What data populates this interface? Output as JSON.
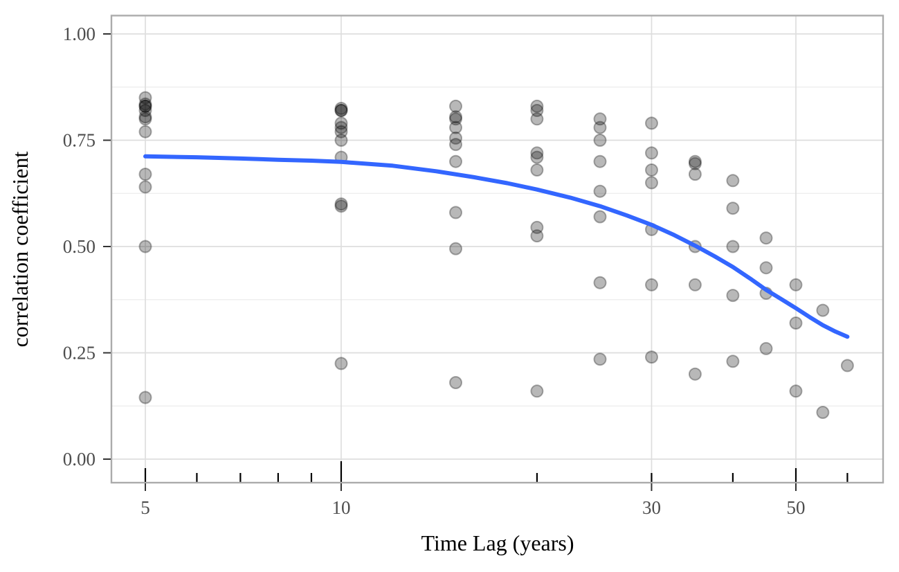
{
  "chart_data": {
    "type": "scatter",
    "title": "",
    "xlabel": "Time Lag (years)",
    "ylabel": "correlation coefficient",
    "x_scale": "log10",
    "x_tick_labels": [
      "5",
      "10",
      "30",
      "50"
    ],
    "x_tick_values": [
      5,
      10,
      30,
      50
    ],
    "y_tick_labels": [
      "0.00",
      "0.25",
      "0.50",
      "0.75",
      "1.00"
    ],
    "y_tick_values": [
      0,
      0.25,
      0.5,
      0.75,
      1.0
    ],
    "y_minor_gridlines": [
      0.125,
      0.375,
      0.625,
      0.875
    ],
    "xlim": [
      4.44,
      68
    ],
    "ylim": [
      -0.055,
      1.043
    ],
    "grid": "on",
    "legend": "none",
    "log_tick_marks": {
      "long": [
        10
      ],
      "medium": [
        5,
        50
      ],
      "short": [
        6,
        7,
        8,
        9,
        20,
        30,
        40,
        60
      ]
    },
    "points": [
      {
        "x": 5,
        "ys": [
          0.85,
          0.835,
          0.83,
          0.83,
          0.82,
          0.805,
          0.8,
          0.77,
          0.67,
          0.64,
          0.5,
          0.145
        ]
      },
      {
        "x": 10,
        "ys": [
          0.825,
          0.82,
          0.82,
          0.79,
          0.78,
          0.77,
          0.75,
          0.71,
          0.6,
          0.595,
          0.225
        ]
      },
      {
        "x": 15,
        "ys": [
          0.83,
          0.805,
          0.8,
          0.78,
          0.755,
          0.74,
          0.7,
          0.58,
          0.495,
          0.18
        ]
      },
      {
        "x": 20,
        "ys": [
          0.83,
          0.82,
          0.8,
          0.72,
          0.71,
          0.68,
          0.545,
          0.525,
          0.16
        ]
      },
      {
        "x": 25,
        "ys": [
          0.8,
          0.78,
          0.75,
          0.7,
          0.63,
          0.57,
          0.415,
          0.235
        ]
      },
      {
        "x": 30,
        "ys": [
          0.79,
          0.72,
          0.68,
          0.65,
          0.54,
          0.41,
          0.24
        ]
      },
      {
        "x": 35,
        "ys": [
          0.7,
          0.695,
          0.67,
          0.5,
          0.41,
          0.2
        ]
      },
      {
        "x": 40,
        "ys": [
          0.655,
          0.59,
          0.5,
          0.385,
          0.23
        ]
      },
      {
        "x": 45,
        "ys": [
          0.52,
          0.45,
          0.39,
          0.26
        ]
      },
      {
        "x": 50,
        "ys": [
          0.41,
          0.32,
          0.16
        ]
      },
      {
        "x": 55,
        "ys": [
          0.35,
          0.11
        ]
      },
      {
        "x": 60,
        "ys": [
          0.22
        ]
      }
    ],
    "smooth_line": {
      "name": "smooth-fit",
      "color": "#3366FF",
      "width": 6,
      "points": [
        [
          5,
          0.712
        ],
        [
          6,
          0.71
        ],
        [
          7,
          0.707
        ],
        [
          8,
          0.704
        ],
        [
          9,
          0.702
        ],
        [
          10,
          0.699
        ],
        [
          12,
          0.69
        ],
        [
          14,
          0.677
        ],
        [
          16,
          0.663
        ],
        [
          18,
          0.649
        ],
        [
          20,
          0.634
        ],
        [
          22.5,
          0.615
        ],
        [
          25,
          0.595
        ],
        [
          27.5,
          0.573
        ],
        [
          30,
          0.551
        ],
        [
          32.5,
          0.527
        ],
        [
          35,
          0.502
        ],
        [
          37.5,
          0.477
        ],
        [
          40,
          0.452
        ],
        [
          42.5,
          0.425
        ],
        [
          45,
          0.398
        ],
        [
          47.5,
          0.376
        ],
        [
          50,
          0.355
        ],
        [
          52.5,
          0.334
        ],
        [
          55,
          0.315
        ],
        [
          57.5,
          0.3
        ],
        [
          60,
          0.288
        ]
      ]
    },
    "style": {
      "panel_background": "#ffffff",
      "panel_border_color": "#ababab",
      "grid_major_color": "#dedede",
      "grid_minor_color": "#ececec",
      "outer_tick_color": "#333333",
      "log_tick_color": "#000000",
      "tick_label_color": "#4d4d4d",
      "point_fill": "#000000",
      "point_fill_opacity": 0.28,
      "point_stroke_opacity": 0.3,
      "point_radius": 8.5
    }
  }
}
